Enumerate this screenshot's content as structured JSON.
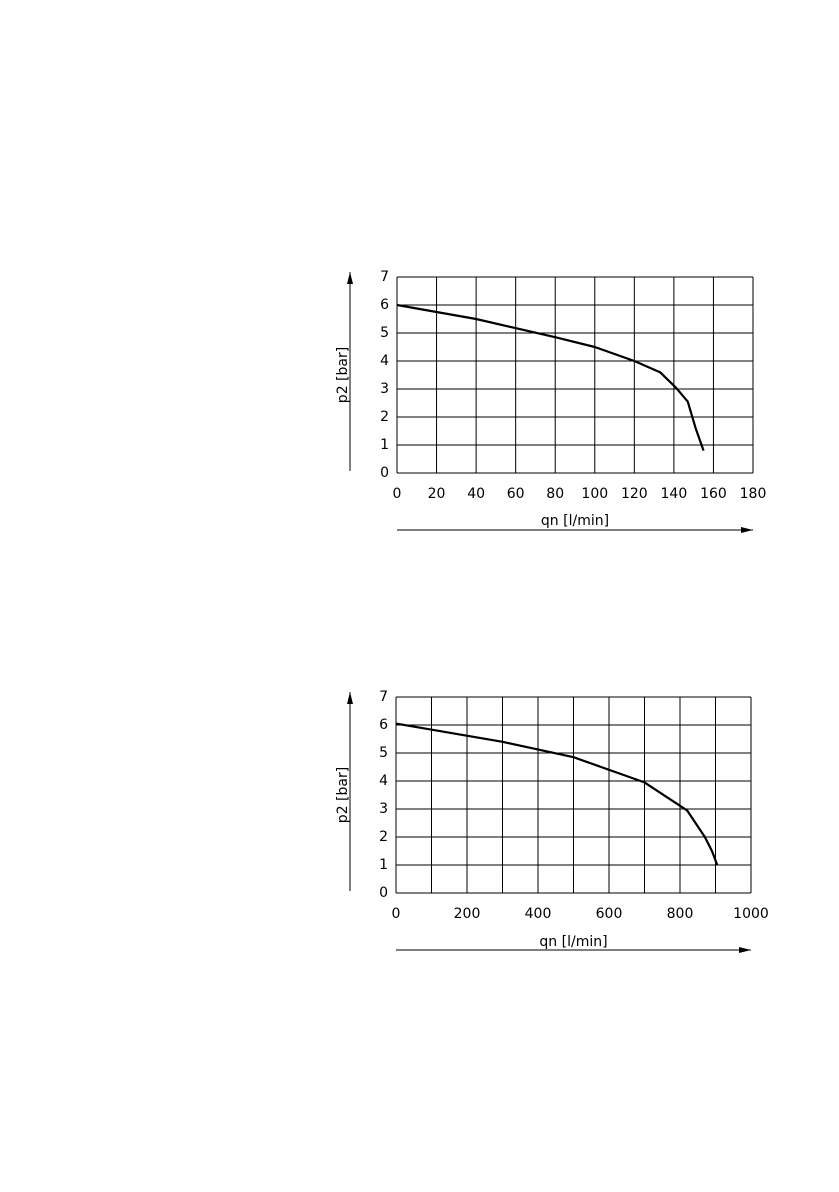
{
  "chart_data": [
    {
      "type": "line",
      "x_label": "qn [l/min]",
      "y_label": "p2 [bar]",
      "x": [
        0,
        40,
        80,
        100,
        120,
        133,
        141,
        147,
        151,
        155
      ],
      "series": [
        {
          "color": "#000000",
          "values": [
            6.0,
            5.5,
            4.85,
            4.5,
            4.0,
            3.6,
            3.05,
            2.55,
            1.6,
            0.8
          ]
        }
      ],
      "xlim": [
        0,
        180
      ],
      "xticks": [
        0,
        20,
        40,
        60,
        80,
        100,
        120,
        140,
        160,
        180
      ],
      "ylim": [
        0,
        7
      ],
      "yticks": [
        0,
        1,
        2,
        3,
        4,
        5,
        6,
        7
      ],
      "grid": true
    },
    {
      "type": "line",
      "x_label": "qn [l/min]",
      "y_label": "p2 [bar]",
      "x": [
        0,
        300,
        500,
        700,
        820,
        870,
        890,
        905
      ],
      "series": [
        {
          "color": "#000000",
          "values": [
            6.05,
            5.4,
            4.85,
            3.95,
            2.95,
            2.0,
            1.5,
            1.0
          ]
        }
      ],
      "xlim": [
        0,
        1000
      ],
      "xticks": [
        0,
        200,
        400,
        600,
        800,
        1000
      ],
      "xminor_grid": [
        100,
        300,
        500,
        700,
        900
      ],
      "ylim": [
        0,
        7
      ],
      "yticks": [
        0,
        1,
        2,
        3,
        4,
        5,
        6,
        7
      ],
      "grid": true
    }
  ]
}
